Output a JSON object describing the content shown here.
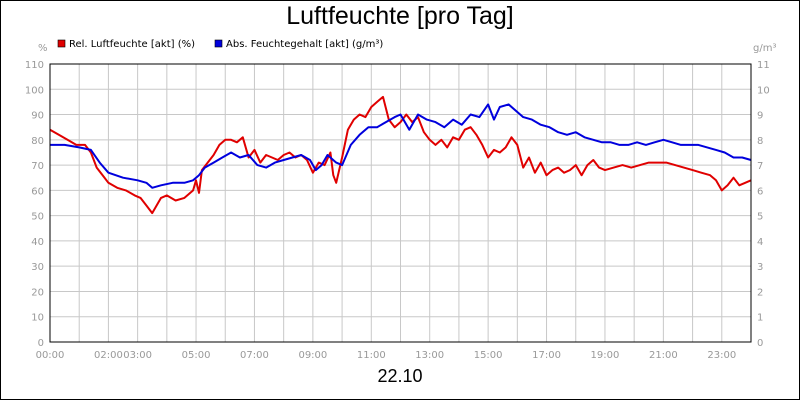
{
  "page": {
    "title": "Luftfeuchte [pro Tag]",
    "date_label": "22.10"
  },
  "chart_data": {
    "type": "line",
    "title": "Luftfeuchte [pro Tag]",
    "xlabel": "22.10",
    "x_ticks": [
      "00:00",
      "02:00",
      "03:00",
      "05:00",
      "07:00",
      "09:00",
      "11:00",
      "13:00",
      "15:00",
      "17:00",
      "19:00",
      "21:00",
      "23:00"
    ],
    "x_tick_hours": [
      0,
      2,
      3,
      5,
      7,
      9,
      11,
      13,
      15,
      17,
      19,
      21,
      23
    ],
    "xlim_hours": [
      0,
      24
    ],
    "y_left": {
      "unit": "%",
      "ylim": [
        0,
        110
      ],
      "ticks": [
        0,
        10,
        20,
        30,
        40,
        50,
        60,
        70,
        80,
        90,
        100,
        110
      ]
    },
    "y_right": {
      "unit": "g/m³",
      "ylim": [
        0,
        11
      ],
      "ticks": [
        0,
        1,
        2,
        3,
        4,
        5,
        6,
        7,
        8,
        9,
        10,
        11
      ]
    },
    "grid": true,
    "legend_position": "top-left",
    "series": [
      {
        "name": "Rel. Luftfeuchte [akt] (%)",
        "axis": "left",
        "color": "#e00000",
        "x": [
          0,
          0.3,
          0.6,
          0.9,
          1.2,
          1.4,
          1.6,
          1.8,
          2.0,
          2.3,
          2.6,
          2.9,
          3.1,
          3.3,
          3.5,
          3.6,
          3.8,
          4.0,
          4.3,
          4.6,
          4.9,
          5.0,
          5.1,
          5.2,
          5.4,
          5.6,
          5.8,
          6.0,
          6.2,
          6.4,
          6.6,
          6.8,
          7.0,
          7.2,
          7.4,
          7.6,
          7.8,
          8.0,
          8.2,
          8.4,
          8.6,
          8.8,
          9.0,
          9.2,
          9.4,
          9.6,
          9.7,
          9.8,
          10.0,
          10.2,
          10.4,
          10.6,
          10.8,
          11.0,
          11.2,
          11.4,
          11.6,
          11.8,
          12.0,
          12.2,
          12.4,
          12.6,
          12.8,
          13.0,
          13.2,
          13.4,
          13.6,
          13.8,
          14.0,
          14.2,
          14.4,
          14.6,
          14.8,
          15.0,
          15.2,
          15.4,
          15.6,
          15.8,
          16.0,
          16.2,
          16.4,
          16.6,
          16.8,
          17.0,
          17.2,
          17.4,
          17.6,
          17.8,
          18.0,
          18.2,
          18.4,
          18.6,
          18.8,
          19.0,
          19.3,
          19.6,
          19.9,
          20.2,
          20.5,
          20.8,
          21.1,
          21.4,
          21.7,
          22.0,
          22.3,
          22.6,
          22.8,
          23.0,
          23.2,
          23.4,
          23.6,
          23.8,
          24.0
        ],
        "y": [
          84,
          82,
          80,
          78,
          78,
          75,
          69,
          66,
          63,
          61,
          60,
          58,
          57,
          54,
          51,
          53,
          57,
          58,
          56,
          57,
          60,
          64,
          59,
          68,
          71,
          74,
          78,
          80,
          80,
          79,
          81,
          73,
          76,
          71,
          74,
          73,
          72,
          74,
          75,
          73,
          74,
          72,
          67,
          71,
          70,
          75,
          66,
          63,
          73,
          84,
          88,
          90,
          89,
          93,
          95,
          97,
          88,
          85,
          87,
          90,
          87,
          89,
          83,
          80,
          78,
          80,
          77,
          81,
          80,
          84,
          85,
          82,
          78,
          73,
          76,
          75,
          77,
          81,
          78,
          69,
          73,
          67,
          71,
          66,
          68,
          69,
          67,
          68,
          70,
          66,
          70,
          72,
          69,
          68,
          69,
          70,
          69,
          70,
          71,
          71,
          71,
          70,
          69,
          68,
          67,
          66,
          64,
          60,
          62,
          65,
          62,
          63,
          64
        ]
      },
      {
        "name": "Abs. Feuchtegehalt [akt] (g/m³)",
        "axis": "right",
        "color": "#0000dd",
        "x": [
          0,
          0.5,
          1.0,
          1.4,
          1.7,
          2.0,
          2.5,
          3.0,
          3.3,
          3.5,
          3.8,
          4.2,
          4.6,
          4.9,
          5.1,
          5.3,
          5.6,
          5.9,
          6.2,
          6.5,
          6.8,
          7.1,
          7.4,
          7.7,
          8.0,
          8.3,
          8.6,
          8.9,
          9.1,
          9.3,
          9.5,
          9.8,
          10.0,
          10.3,
          10.6,
          10.9,
          11.2,
          11.5,
          11.8,
          12.0,
          12.3,
          12.6,
          12.9,
          13.2,
          13.5,
          13.8,
          14.1,
          14.4,
          14.7,
          15.0,
          15.2,
          15.4,
          15.7,
          16.0,
          16.2,
          16.5,
          16.8,
          17.1,
          17.4,
          17.7,
          18.0,
          18.3,
          18.6,
          18.9,
          19.2,
          19.5,
          19.8,
          20.1,
          20.4,
          20.7,
          21.0,
          21.3,
          21.6,
          21.9,
          22.2,
          22.5,
          22.8,
          23.1,
          23.4,
          23.7,
          24.0
        ],
        "y": [
          7.8,
          7.8,
          7.7,
          7.6,
          7.1,
          6.7,
          6.5,
          6.4,
          6.3,
          6.1,
          6.2,
          6.3,
          6.3,
          6.4,
          6.6,
          6.9,
          7.1,
          7.3,
          7.5,
          7.3,
          7.4,
          7.0,
          6.9,
          7.1,
          7.2,
          7.3,
          7.4,
          7.2,
          6.8,
          7.0,
          7.4,
          7.1,
          7.0,
          7.8,
          8.2,
          8.5,
          8.5,
          8.7,
          8.9,
          9.0,
          8.4,
          9.0,
          8.8,
          8.7,
          8.5,
          8.8,
          8.6,
          9.0,
          8.9,
          9.4,
          8.8,
          9.3,
          9.4,
          9.1,
          8.9,
          8.8,
          8.6,
          8.5,
          8.3,
          8.2,
          8.3,
          8.1,
          8.0,
          7.9,
          7.9,
          7.8,
          7.8,
          7.9,
          7.8,
          7.9,
          8.0,
          7.9,
          7.8,
          7.8,
          7.8,
          7.7,
          7.6,
          7.5,
          7.3,
          7.3,
          7.2
        ]
      }
    ]
  }
}
